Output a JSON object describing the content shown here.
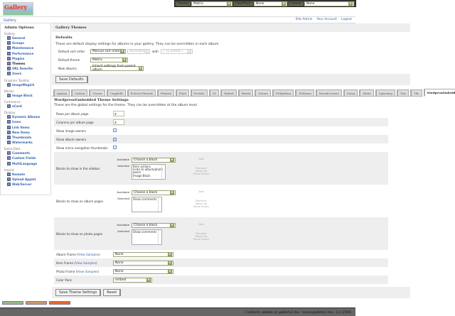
{
  "topbar": {
    "theme_label": "Theme:",
    "theme_value": "Matrix",
    "colorpack_label": "ColorPack:",
    "colorpack_value": "None",
    "frames_label": "Frames:",
    "frames_value": "None"
  },
  "logo_text": "Gallery",
  "breadcrumb": "Gallery",
  "header_links": [
    "Site Admin",
    "Your Account",
    "Logout"
  ],
  "sidebar": {
    "title": "Admin Options",
    "groups": [
      {
        "label": "Gallery",
        "items": [
          "General",
          "Groups",
          "Maintenance",
          "Performance",
          "Plugins",
          "Themes",
          "URL Rewrite",
          "Users"
        ],
        "current": "Themes"
      },
      {
        "label": "Graphics Toolkits",
        "items": [
          "ImageMagick"
        ]
      },
      {
        "label": "Blocks",
        "items": [
          "Image Block"
        ]
      },
      {
        "label": "Commerce",
        "items": [
          "eCard"
        ]
      },
      {
        "label": "Display",
        "items": [
          "Dynamic Albums",
          "Icons",
          "Link Items",
          "New Items",
          "Thumbnails",
          "Watermarks"
        ]
      },
      {
        "label": "Extra Data",
        "items": [
          "Comments",
          "Custom Fields",
          "MultiLanguage"
        ]
      },
      {
        "label": "Import",
        "items": [
          "Remote",
          "Upload Applet",
          "Web/Server"
        ]
      }
    ]
  },
  "main": {
    "title": "Gallery Themes",
    "defaults_title": "Defaults",
    "defaults_desc": "These are default display settings for albums in your gallery. They can be overridden in each album.",
    "sort_label": "Default sort order",
    "sort_value": "Manual sort order",
    "sort_dir": "Ascending",
    "with_label": "with",
    "with_value": "« no preset »",
    "theme_label": "Default theme",
    "theme_value": "Matrix",
    "new_albums_label": "New albums",
    "new_albums_value": "Inherit settings from parent album",
    "save_defaults": "Save Defaults"
  },
  "tabs": [
    "Ajaxian",
    "Carbon",
    "Classic",
    "Cupplefit",
    "EclecticThreads",
    "Floatrix",
    "Fluid",
    "ForSale",
    "G1",
    "Hybrid",
    "Matrix",
    "Nature",
    "PGlightbox",
    "PGtheme",
    "RoundCorners",
    "Siriux",
    "Slider",
    "Splashing",
    "Tien",
    "Tile",
    "WordpressEmbedded"
  ],
  "active_tab": "WordpressEmbedded",
  "theme_settings": {
    "title": "WordpressEmbedded Theme Settings",
    "desc": "These are the global settings for the theme. They can be overridden at the album level.",
    "rows_label": "Rows per album page",
    "rows_value": "3",
    "cols_label": "Columns per album page",
    "cols_value": "3",
    "image_owners_label": "Show image owners",
    "image_owners": false,
    "album_owners_label": "Show album owners",
    "album_owners": true,
    "micro_nav_label": "Show micro navigation thumbnails",
    "micro_nav": false,
    "available_label": "Available",
    "selected_label": "Selected",
    "choose": "Choose a block",
    "add": "Add",
    "remove": "Remove",
    "move_up": "Move Up",
    "move_down": "Move Down",
    "blocks": [
      {
        "label": "Blocks to show in the sidebar",
        "selected": "Item actions\nLinks to album/photo peers\nImage Block"
      },
      {
        "label": "Blocks to show on album pages",
        "selected": "Show comments"
      },
      {
        "label": "Blocks to show on photo pages",
        "selected": "Show comments"
      }
    ],
    "view_samples": "View Samples",
    "album_frame_label": "Album Frame",
    "album_frame": "None",
    "item_frame_label": "Item Frame",
    "item_frame": "None",
    "photo_frame_label": "Photo Frame",
    "photo_frame": "None",
    "color_pack_label": "Color Pack",
    "color_pack": "embed",
    "save": "Save Theme Settings",
    "reset": "Reset"
  },
  "footer": "Contact: admin at gallery2.hu - www.gallery2.hu - (c) 2006"
}
